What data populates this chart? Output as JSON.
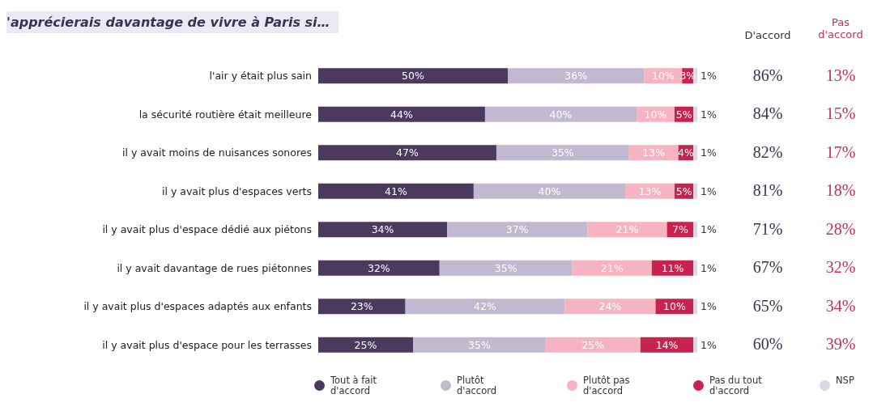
{
  "chart_data": {
    "type": "bar",
    "orientation": "horizontal",
    "stacked": true,
    "title": "'apprécierais davantage de vivre à Paris si…",
    "categories": [
      "l'air y était plus sain",
      "la sécurité routière était meilleure",
      "il y avait moins de nuisances sonores",
      "il y avait plus d'espaces verts",
      "il y avait plus d'espace dédié aux piétons",
      "il y avait davantage de rues piétonnes",
      "il y avait plus d'espaces adaptés aux enfants",
      "il y avait plus d'espace pour les terrasses"
    ],
    "xlim": [
      0,
      100
    ],
    "series": [
      {
        "name": "Tout à fait d'accord",
        "color": "#4b3a5e",
        "values": [
          50,
          44,
          47,
          41,
          34,
          32,
          23,
          25
        ],
        "value_labels": [
          "50%",
          "44%",
          "47%",
          "41%",
          "34%",
          "32%",
          "23%",
          "25%"
        ]
      },
      {
        "name": "Plutôt d'accord",
        "color": "#c2b8d0",
        "values": [
          36,
          40,
          35,
          40,
          37,
          35,
          42,
          35
        ],
        "value_labels": [
          "36%",
          "40%",
          "35%",
          "40%",
          "37%",
          "35%",
          "42%",
          "35%"
        ]
      },
      {
        "name": "Plutôt pas d'accord",
        "color": "#f6b4c3",
        "values": [
          10,
          10,
          13,
          13,
          21,
          21,
          24,
          25
        ],
        "value_labels": [
          "10%",
          "10%",
          "13%",
          "13%",
          "21%",
          "21%",
          "24%",
          "25%"
        ]
      },
      {
        "name": "Pas du tout d'accord",
        "color": "#c8224f",
        "values": [
          3,
          5,
          4,
          5,
          7,
          11,
          10,
          14
        ],
        "value_labels": [
          "3%",
          "5%",
          "4%",
          "5%",
          "7%",
          "11%",
          "10%",
          "14%"
        ]
      },
      {
        "name": "NSP",
        "color": "#dcd8e6",
        "values": [
          1,
          1,
          1,
          1,
          1,
          1,
          1,
          1
        ],
        "value_labels": [
          "1%",
          "1%",
          "1%",
          "1%",
          "1%",
          "1%",
          "1%",
          "1%"
        ]
      }
    ],
    "annotations": [
      "D'accord",
      "Pas d'accord",
      "86%",
      "13%",
      "84%",
      "15%",
      "82%",
      "17%",
      "81%",
      "18%",
      "71%",
      "28%",
      "67%",
      "32%",
      "65%",
      "34%",
      "60%",
      "39%"
    ],
    "legend": "bottom"
  }
}
